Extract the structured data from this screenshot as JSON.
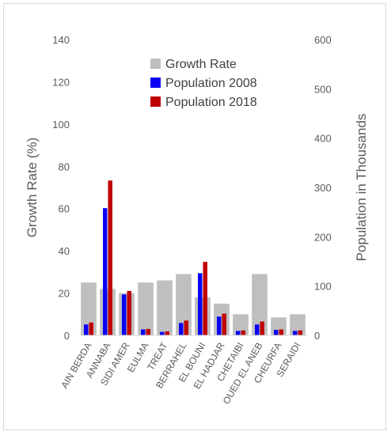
{
  "chart_data": {
    "type": "bar",
    "categories": [
      "AIN BERDA",
      "ANNABA",
      "SIDI AMER",
      "EULMA",
      "TREAT",
      "BERRAHEL",
      "EL BOUNI",
      "EL HADJAR",
      "CHETAIBI",
      "OUED EL ANEB",
      "CHEURFA",
      "SERAIDI"
    ],
    "series": [
      {
        "name": "Growth Rate",
        "axis": "left",
        "color": "#bfbfbf",
        "values": [
          25,
          22,
          20,
          25,
          26,
          29,
          18,
          15,
          10,
          29,
          8.5,
          10
        ]
      },
      {
        "name": "Population 2008",
        "axis": "right",
        "color": "#0b00f5",
        "values": [
          22,
          258,
          83,
          12,
          7,
          25,
          126,
          38,
          9,
          22,
          11,
          9
        ]
      },
      {
        "name": "Population 2018",
        "axis": "right",
        "color": "#c00000",
        "values": [
          26,
          314,
          90,
          13,
          8,
          30,
          149,
          44,
          10,
          28,
          12,
          10
        ]
      }
    ],
    "ylabel": "Growth Rate (%)",
    "y2label": "Population in Thousands",
    "ylim": [
      0,
      140
    ],
    "yticks": [
      "0",
      "20",
      "40",
      "60",
      "80",
      "100",
      "120",
      "140"
    ],
    "y2lim": [
      0,
      600
    ],
    "y2ticks": [
      "0",
      "100",
      "200",
      "300",
      "400",
      "500",
      "600"
    ],
    "legend_position": "top-center",
    "grid": false
  }
}
